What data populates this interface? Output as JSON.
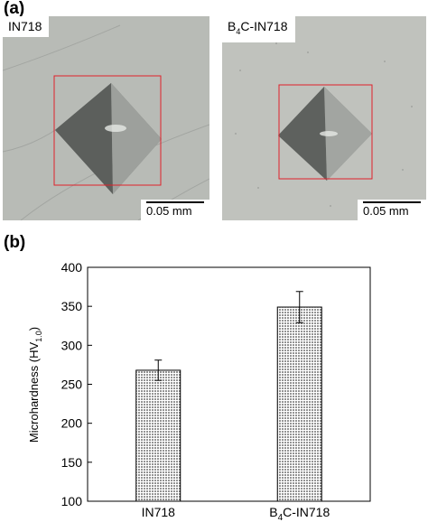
{
  "panel_a": {
    "label": "(a)",
    "images": [
      {
        "label_main": "IN718",
        "label_sub": "",
        "label_rest": "",
        "scale": "0.05 mm"
      },
      {
        "label_main": "B",
        "label_sub": "4",
        "label_rest": "C-IN718",
        "scale": "0.05 mm"
      }
    ],
    "colors": {
      "box": "#e0202a",
      "background": "#b9bcb7"
    }
  },
  "panel_b": {
    "label": "(b)"
  },
  "chart_data": {
    "type": "bar",
    "categories": [
      {
        "main": "IN718",
        "sub": "",
        "rest": ""
      },
      {
        "main": "B",
        "sub": "4",
        "rest": "C-IN718"
      }
    ],
    "values": [
      268,
      349
    ],
    "errors": [
      13,
      20
    ],
    "ylabel": {
      "main": "Microhardness (HV",
      "sub": "1.0",
      "rest": ")"
    },
    "ylim": [
      100,
      400
    ],
    "yticks": [
      100,
      150,
      200,
      250,
      300,
      350,
      400
    ],
    "bar_fill": "dotted pattern",
    "grid": false
  }
}
